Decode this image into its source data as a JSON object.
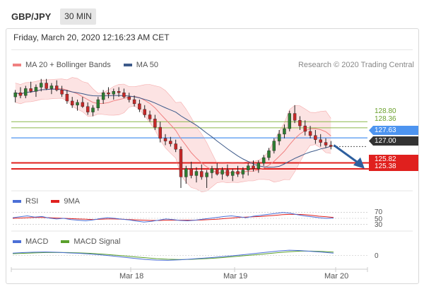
{
  "header": {
    "symbol": "GBP/JPY",
    "timeframe": "30 MIN",
    "datetime": "Friday, March 20, 2020 12:16:23 AM CET",
    "credit": "Research © 2020 Trading Central"
  },
  "legend": {
    "ma_bb": "MA 20 + Bollinger Bands",
    "ma50": "MA 50",
    "rsi": "RSI",
    "nine_ma": "9MA",
    "macd": "MACD",
    "macd_signal": "MACD Signal"
  },
  "colors": {
    "bullish": "#2e7d32",
    "bearish": "#c62828",
    "bollinger_fill": "#fbd9d9",
    "ma20": "#f08080",
    "ma50": "#3d5a8a",
    "resistance": "#8ab84a",
    "current_price": "#4d94f0",
    "support": "#e0201e",
    "last_price_tag": "#333333",
    "arrow": "#2e5f9e",
    "rsi": "#4b6fd6",
    "rsi_ma": "#e0201e",
    "macd": "#4b6fd6",
    "macd_signal": "#5aa02c"
  },
  "chart_data": [
    {
      "type": "candlestick",
      "title": "GBP/JPY 30 MIN",
      "x_labels": [
        "Mar 18",
        "Mar 19",
        "Mar 20"
      ],
      "ylim": [
        124.0,
        132.5
      ],
      "series": [
        {
          "name": "MA 20 + Bollinger Bands",
          "kind": "line+band"
        },
        {
          "name": "MA 50",
          "kind": "line"
        }
      ],
      "candles": [
        {
          "o": 130.6,
          "h": 131.1,
          "l": 130.2,
          "c": 130.9
        },
        {
          "o": 130.9,
          "h": 131.3,
          "l": 130.5,
          "c": 130.7
        },
        {
          "o": 130.7,
          "h": 131.4,
          "l": 130.5,
          "c": 131.2
        },
        {
          "o": 131.2,
          "h": 131.7,
          "l": 130.9,
          "c": 131.0
        },
        {
          "o": 131.0,
          "h": 131.5,
          "l": 130.6,
          "c": 131.3
        },
        {
          "o": 131.3,
          "h": 131.9,
          "l": 131.0,
          "c": 131.6
        },
        {
          "o": 131.6,
          "h": 131.9,
          "l": 131.1,
          "c": 131.2
        },
        {
          "o": 131.2,
          "h": 131.6,
          "l": 130.8,
          "c": 131.4
        },
        {
          "o": 131.4,
          "h": 131.8,
          "l": 131.0,
          "c": 131.1
        },
        {
          "o": 131.1,
          "h": 131.4,
          "l": 130.6,
          "c": 130.8
        },
        {
          "o": 130.8,
          "h": 131.1,
          "l": 130.1,
          "c": 130.3
        },
        {
          "o": 130.3,
          "h": 130.6,
          "l": 129.8,
          "c": 130.0
        },
        {
          "o": 130.0,
          "h": 130.4,
          "l": 129.6,
          "c": 130.2
        },
        {
          "o": 130.2,
          "h": 130.6,
          "l": 129.8,
          "c": 129.9
        },
        {
          "o": 129.9,
          "h": 130.2,
          "l": 129.3,
          "c": 129.5
        },
        {
          "o": 129.5,
          "h": 130.0,
          "l": 129.2,
          "c": 129.8
        },
        {
          "o": 129.8,
          "h": 130.6,
          "l": 129.6,
          "c": 130.4
        },
        {
          "o": 130.4,
          "h": 131.1,
          "l": 130.1,
          "c": 130.9
        },
        {
          "o": 130.9,
          "h": 131.3,
          "l": 130.5,
          "c": 130.8
        },
        {
          "o": 130.8,
          "h": 131.2,
          "l": 130.4,
          "c": 131.0
        },
        {
          "o": 131.0,
          "h": 131.3,
          "l": 130.6,
          "c": 130.9
        },
        {
          "o": 130.9,
          "h": 131.2,
          "l": 130.5,
          "c": 130.6
        },
        {
          "o": 130.6,
          "h": 130.9,
          "l": 130.2,
          "c": 130.4
        },
        {
          "o": 130.4,
          "h": 130.7,
          "l": 129.9,
          "c": 130.1
        },
        {
          "o": 130.1,
          "h": 130.4,
          "l": 129.5,
          "c": 129.7
        },
        {
          "o": 129.7,
          "h": 130.0,
          "l": 129.1,
          "c": 129.3
        },
        {
          "o": 129.3,
          "h": 129.6,
          "l": 128.8,
          "c": 129.0
        },
        {
          "o": 129.0,
          "h": 129.3,
          "l": 128.2,
          "c": 128.4
        },
        {
          "o": 128.4,
          "h": 128.8,
          "l": 127.3,
          "c": 127.6
        },
        {
          "o": 127.6,
          "h": 127.9,
          "l": 127.1,
          "c": 127.4
        },
        {
          "o": 127.4,
          "h": 127.7,
          "l": 127.0,
          "c": 127.2
        },
        {
          "o": 127.2,
          "h": 127.5,
          "l": 126.6,
          "c": 126.8
        },
        {
          "o": 126.8,
          "h": 127.0,
          "l": 124.0,
          "c": 124.8
        },
        {
          "o": 124.8,
          "h": 125.6,
          "l": 124.3,
          "c": 125.4
        },
        {
          "o": 125.4,
          "h": 125.9,
          "l": 124.7,
          "c": 124.9
        },
        {
          "o": 124.9,
          "h": 125.5,
          "l": 124.4,
          "c": 125.2
        },
        {
          "o": 125.2,
          "h": 125.7,
          "l": 124.6,
          "c": 124.8
        },
        {
          "o": 124.8,
          "h": 125.3,
          "l": 124.0,
          "c": 125.1
        },
        {
          "o": 125.1,
          "h": 125.6,
          "l": 124.7,
          "c": 125.4
        },
        {
          "o": 125.4,
          "h": 125.8,
          "l": 124.9,
          "c": 125.0
        },
        {
          "o": 125.0,
          "h": 125.5,
          "l": 124.6,
          "c": 125.3
        },
        {
          "o": 125.3,
          "h": 125.7,
          "l": 124.8,
          "c": 124.9
        },
        {
          "o": 124.9,
          "h": 125.4,
          "l": 124.5,
          "c": 125.2
        },
        {
          "o": 125.2,
          "h": 125.6,
          "l": 124.8,
          "c": 125.0
        },
        {
          "o": 125.0,
          "h": 125.5,
          "l": 124.7,
          "c": 125.3
        },
        {
          "o": 125.3,
          "h": 125.8,
          "l": 124.9,
          "c": 125.6
        },
        {
          "o": 125.6,
          "h": 126.0,
          "l": 125.2,
          "c": 125.4
        },
        {
          "o": 125.4,
          "h": 126.0,
          "l": 125.1,
          "c": 125.8
        },
        {
          "o": 125.8,
          "h": 126.4,
          "l": 125.6,
          "c": 126.2
        },
        {
          "o": 126.2,
          "h": 126.9,
          "l": 126.0,
          "c": 126.7
        },
        {
          "o": 126.7,
          "h": 127.6,
          "l": 126.5,
          "c": 127.4
        },
        {
          "o": 127.4,
          "h": 128.2,
          "l": 127.1,
          "c": 127.9
        },
        {
          "o": 127.9,
          "h": 128.6,
          "l": 127.6,
          "c": 128.3
        },
        {
          "o": 128.3,
          "h": 129.6,
          "l": 128.1,
          "c": 129.4
        },
        {
          "o": 129.4,
          "h": 130.0,
          "l": 128.7,
          "c": 128.9
        },
        {
          "o": 128.9,
          "h": 129.2,
          "l": 128.2,
          "c": 128.5
        },
        {
          "o": 128.5,
          "h": 128.9,
          "l": 127.8,
          "c": 128.1
        },
        {
          "o": 128.1,
          "h": 128.5,
          "l": 127.6,
          "c": 127.8
        },
        {
          "o": 127.8,
          "h": 128.2,
          "l": 127.2,
          "c": 127.5
        },
        {
          "o": 127.5,
          "h": 127.9,
          "l": 127.0,
          "c": 127.3
        },
        {
          "o": 127.3,
          "h": 127.6,
          "l": 126.9,
          "c": 127.1
        },
        {
          "o": 127.1,
          "h": 127.4,
          "l": 126.8,
          "c": 127.0
        }
      ],
      "levels": [
        {
          "value": 128.8,
          "label": "128.80",
          "kind": "resistance"
        },
        {
          "value": 128.36,
          "label": "128.36",
          "kind": "resistance"
        },
        {
          "value": 127.63,
          "label": "127.63",
          "kind": "current"
        },
        {
          "value": 127.0,
          "label": "127.00",
          "kind": "last"
        },
        {
          "value": 125.82,
          "label": "125.82",
          "kind": "support"
        },
        {
          "value": 125.38,
          "label": "125.38",
          "kind": "support"
        }
      ],
      "forecast_arrow": {
        "from": 127.1,
        "to": 125.6
      }
    },
    {
      "type": "line",
      "title": "RSI",
      "ylim": [
        20,
        80
      ],
      "reference_levels": [
        70,
        50,
        30
      ],
      "series": [
        {
          "name": "RSI",
          "values": [
            52,
            55,
            58,
            54,
            56,
            51,
            48,
            50,
            46,
            44,
            42,
            45,
            49,
            52,
            50,
            47,
            45,
            41,
            38,
            40,
            44,
            48,
            46,
            43,
            42,
            44,
            47,
            50,
            53,
            56,
            58,
            55,
            52,
            57,
            60,
            63,
            66,
            69,
            67,
            62,
            58,
            55,
            52,
            50,
            51
          ]
        },
        {
          "name": "9MA",
          "values": [
            50,
            51,
            52,
            53,
            53,
            52,
            51,
            50,
            49,
            48,
            47,
            46,
            47,
            48,
            48,
            47,
            46,
            45,
            44,
            43,
            43,
            44,
            44,
            44,
            44,
            44,
            45,
            46,
            47,
            49,
            51,
            53,
            54,
            55,
            56,
            58,
            60,
            62,
            63,
            63,
            62,
            60,
            57,
            55,
            53
          ]
        }
      ]
    },
    {
      "type": "line",
      "title": "MACD",
      "ylim": [
        -1.0,
        1.0
      ],
      "reference_levels": [
        0
      ],
      "series": [
        {
          "name": "MACD",
          "values": [
            0.2,
            0.25,
            0.28,
            0.3,
            0.27,
            0.22,
            0.18,
            0.12,
            0.05,
            -0.05,
            -0.15,
            -0.25,
            -0.35,
            -0.4,
            -0.42,
            -0.38,
            -0.32,
            -0.25,
            -0.18,
            -0.1,
            -0.02,
            0.08,
            0.18,
            0.28,
            0.38,
            0.45,
            0.42,
            0.35,
            0.28,
            0.2
          ]
        },
        {
          "name": "MACD Signal",
          "values": [
            0.15,
            0.18,
            0.22,
            0.25,
            0.26,
            0.25,
            0.22,
            0.18,
            0.12,
            0.05,
            -0.03,
            -0.12,
            -0.2,
            -0.28,
            -0.33,
            -0.35,
            -0.34,
            -0.3,
            -0.25,
            -0.18,
            -0.1,
            -0.02,
            0.06,
            0.15,
            0.24,
            0.32,
            0.37,
            0.37,
            0.34,
            0.29
          ]
        }
      ]
    }
  ]
}
